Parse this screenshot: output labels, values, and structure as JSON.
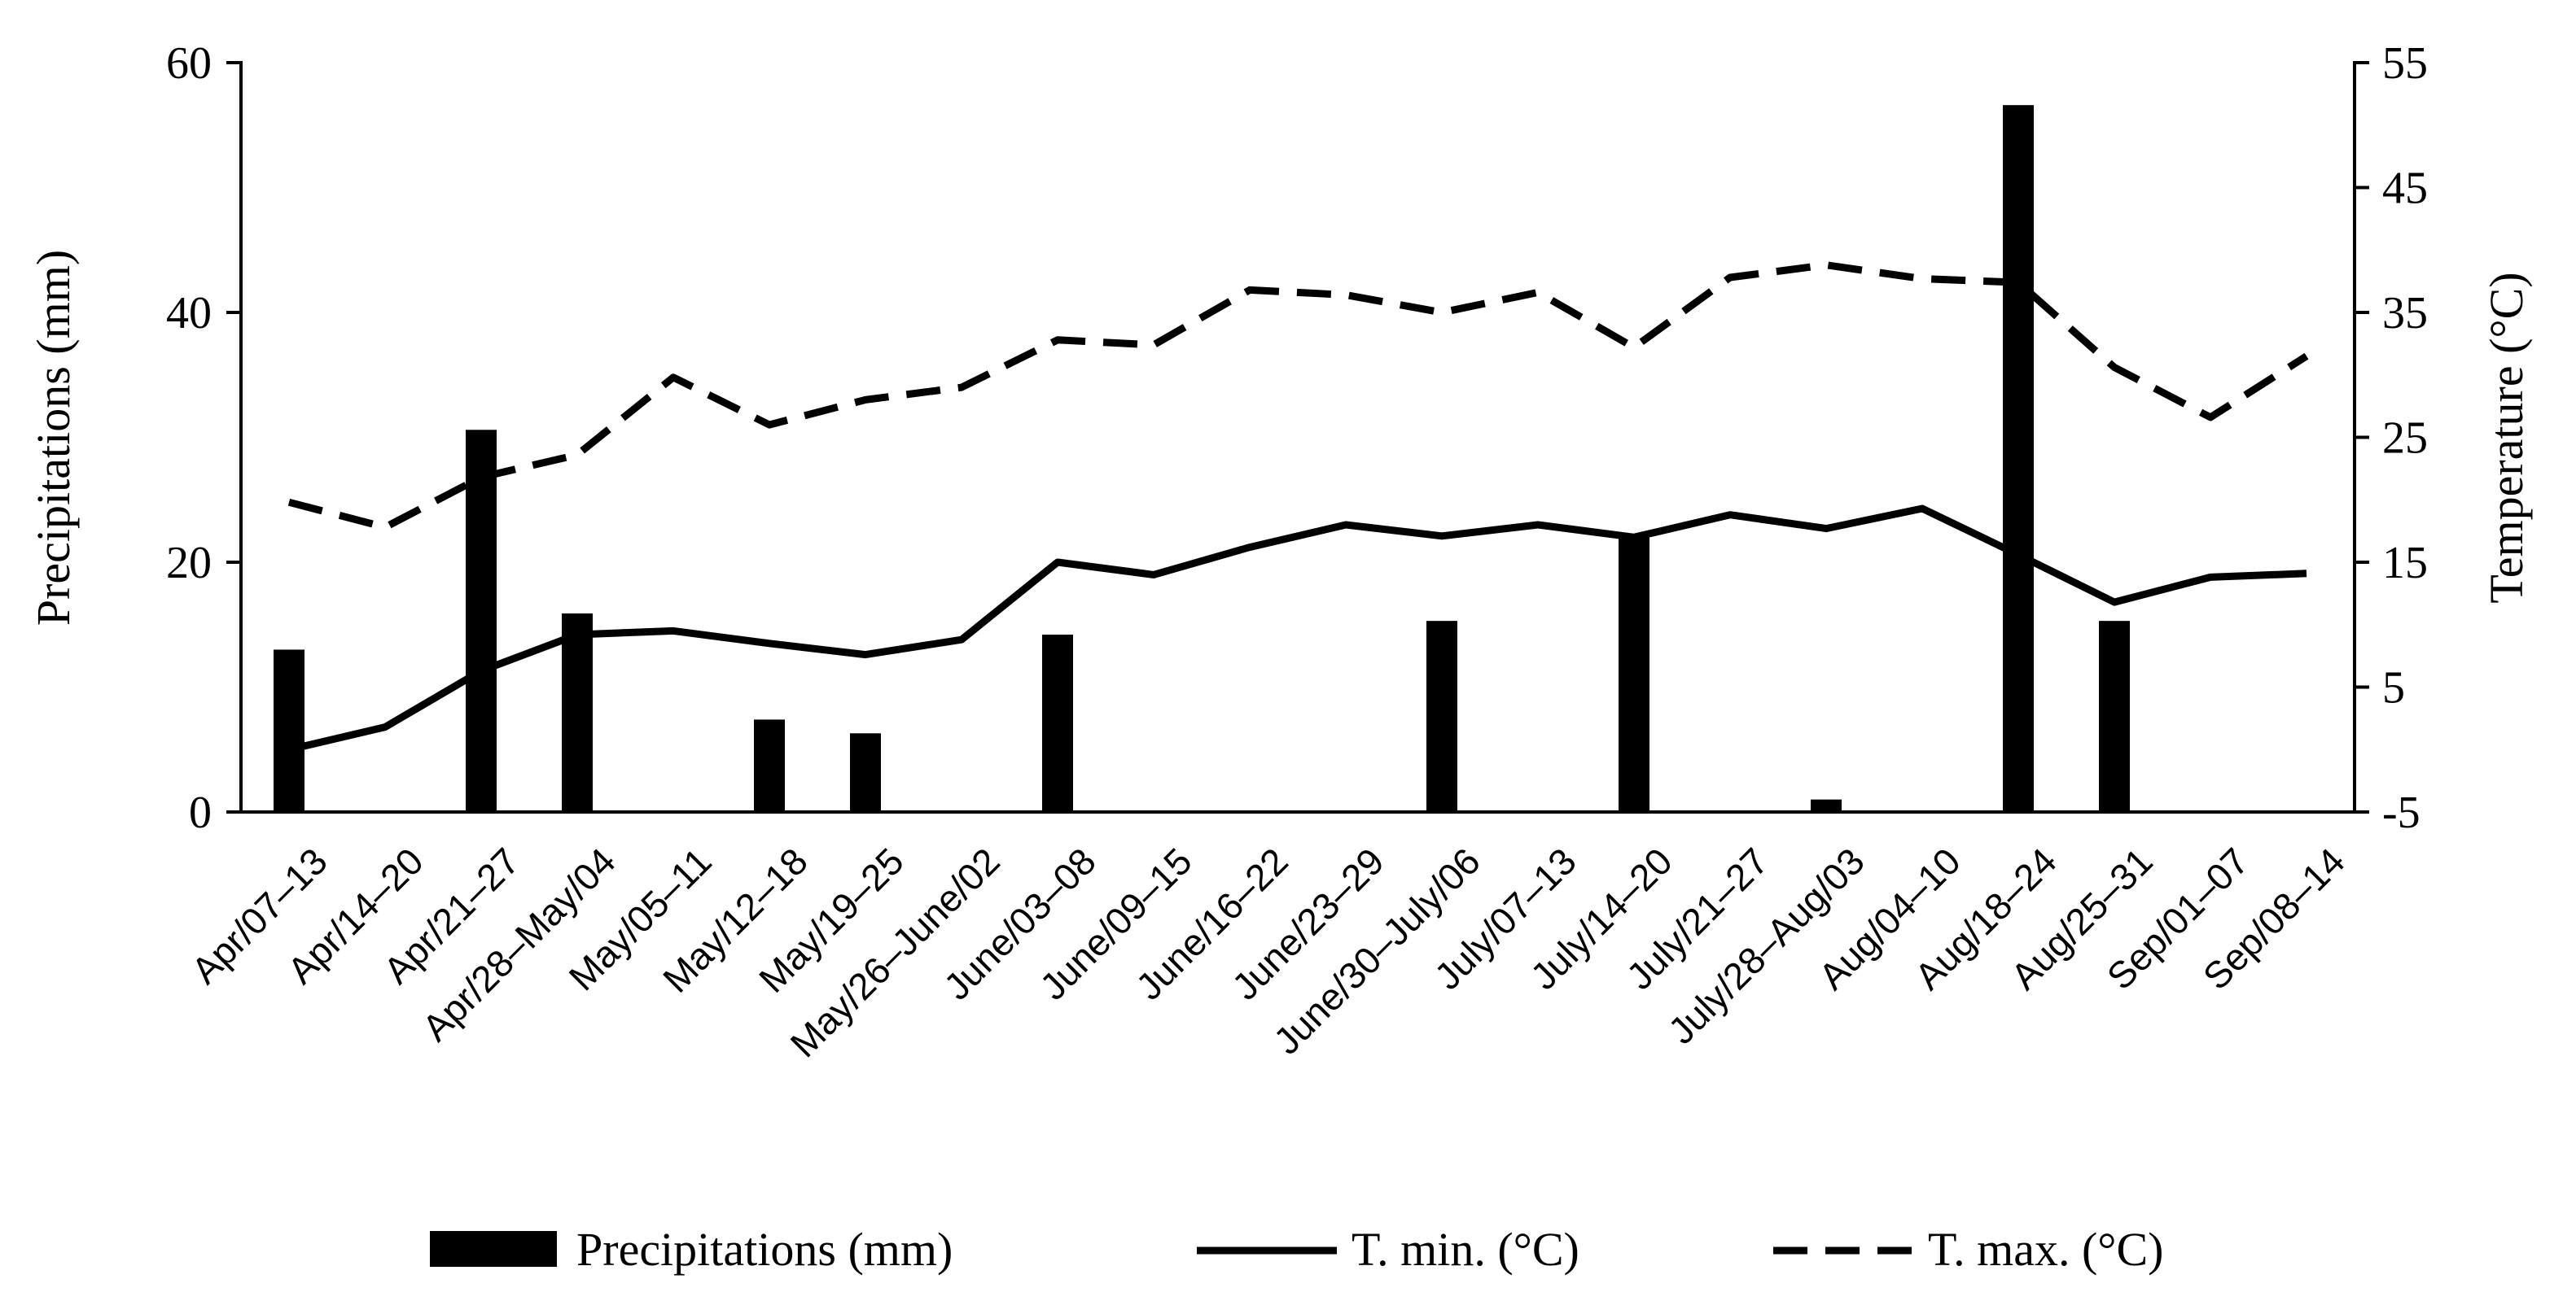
{
  "chart_data": {
    "type": "bar+line",
    "categories": [
      "Apr/07–13",
      "Apr/14–20",
      "Apr/21–27",
      "Apr/28–May/04",
      "May/05–11",
      "May/12–18",
      "May/19–25",
      "May/26–June/02",
      "June/03–08",
      "June/09–15",
      "June/16–22",
      "June/23–29",
      "June/30–July/06",
      "July/07–13",
      "July/14–20",
      "July/21–27",
      "July/28–Aug/03",
      "Aug/04–10",
      "Aug/18–24",
      "Aug/25–31",
      "Sep/01–07",
      "Sep/08–14"
    ],
    "series": [
      {
        "name": "Precipitations (mm)",
        "type": "bar",
        "axis": "left",
        "values": [
          13.0,
          0,
          30.6,
          15.9,
          0,
          7.4,
          6.3,
          0,
          14.2,
          0,
          0,
          0,
          15.3,
          0,
          22.0,
          0,
          1.0,
          0,
          56.6,
          15.3,
          0,
          0
        ]
      },
      {
        "name": "T. min. (°C)",
        "type": "line",
        "style": "solid",
        "axis": "right",
        "values": [
          0.0,
          1.8,
          6.3,
          9.2,
          9.5,
          8.5,
          7.6,
          8.8,
          15.0,
          14.0,
          16.2,
          18.0,
          17.1,
          18.0,
          17.0,
          18.8,
          17.7,
          19.3,
          15.6,
          11.8,
          13.8,
          14.1
        ]
      },
      {
        "name": "T. max. (°C)",
        "type": "line",
        "style": "dashed",
        "axis": "right",
        "values": [
          19.8,
          17.8,
          21.8,
          23.6,
          29.8,
          26.0,
          28.0,
          29.0,
          32.8,
          32.4,
          36.8,
          36.4,
          35.0,
          36.6,
          32.2,
          37.8,
          38.8,
          37.7,
          37.4,
          30.6,
          26.6,
          31.5
        ]
      }
    ],
    "y_left": {
      "label": "Precipitations (mm)",
      "range": [
        0,
        60
      ],
      "ticks": [
        0,
        20,
        40,
        60
      ]
    },
    "y_right": {
      "label": "Temperature (°C)",
      "range": [
        -5,
        55
      ],
      "ticks": [
        -5,
        5,
        15,
        25,
        35,
        45,
        55
      ]
    },
    "legend": {
      "position": "bottom",
      "items": [
        {
          "label": "Precipitations (mm)",
          "marker": "bar"
        },
        {
          "label": "T. min. (°C)",
          "marker": "solid-line"
        },
        {
          "label": "T. max. (°C)",
          "marker": "dashed-line"
        }
      ]
    },
    "grid": false
  },
  "colors": {
    "ink": "#000000",
    "background": "#ffffff"
  }
}
